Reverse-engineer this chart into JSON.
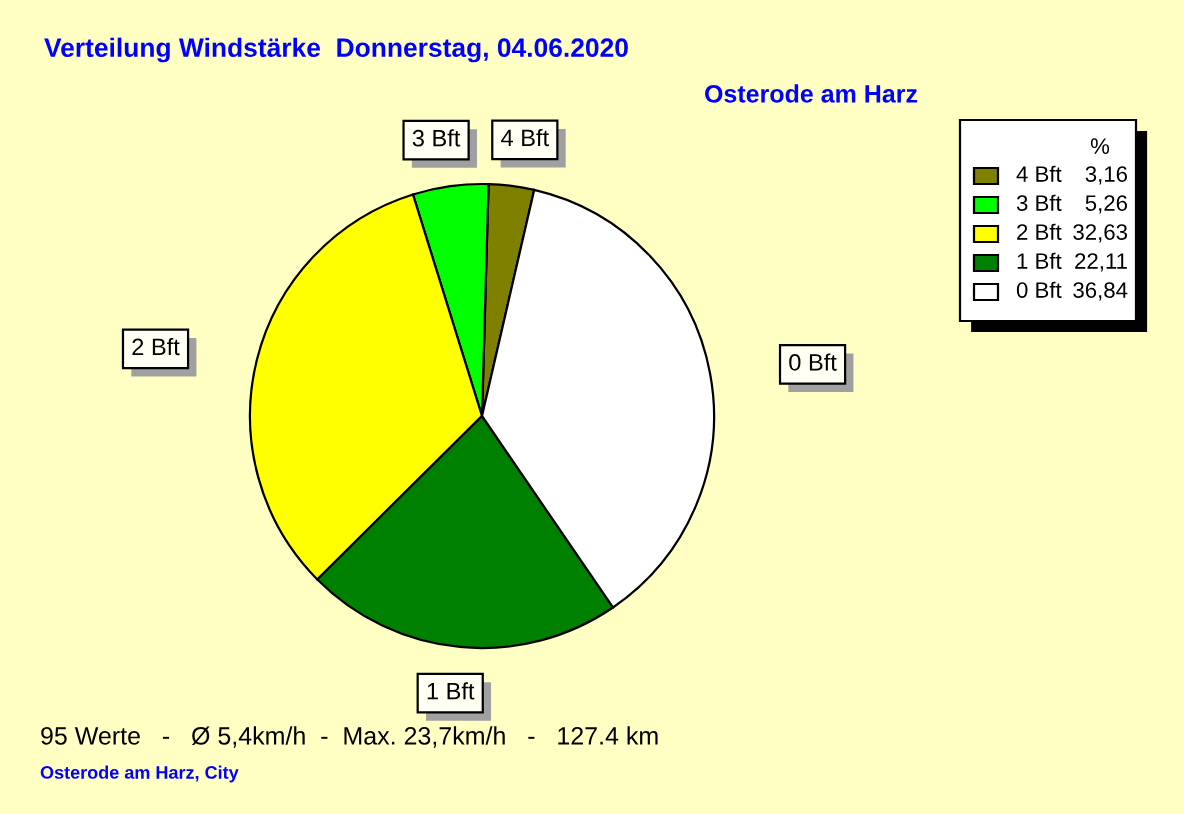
{
  "chart_data": {
    "type": "pie",
    "title": "Verteilung Windstärke  Donnerstag, 04.06.2020",
    "subtitle": "Osterode am Harz",
    "categories": [
      "4 Bft",
      "3 Bft",
      "2 Bft",
      "1 Bft",
      "0 Bft"
    ],
    "values": [
      3.16,
      5.26,
      32.63,
      22.11,
      36.84
    ],
    "colors": [
      "#808000",
      "#00ff00",
      "#ffff00",
      "#008000",
      "#ffffff"
    ],
    "value_labels": [
      "3,16",
      "5,26",
      "32,63",
      "22,11",
      "36,84"
    ],
    "legend_title": "%",
    "legend": "top right",
    "annotations": [
      "95 Werte   -   Ø 5,4km/h  -  Max. 23,7km/h   -   127.4 km",
      "Osterode am Harz, City"
    ]
  }
}
